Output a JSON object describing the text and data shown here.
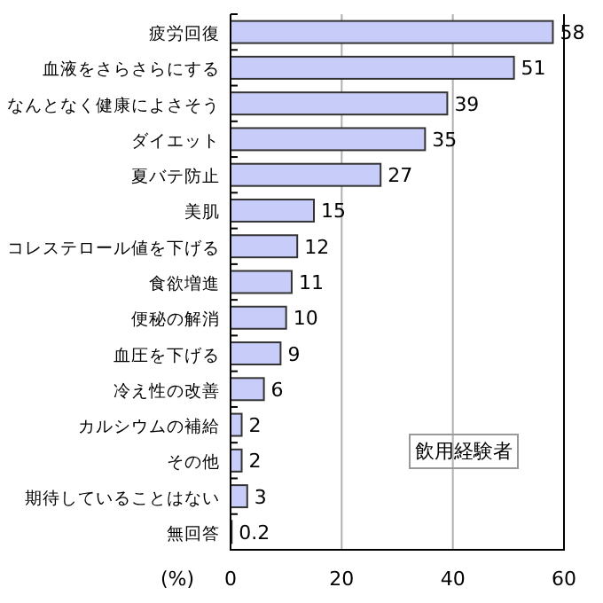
{
  "chart_data": {
    "type": "bar",
    "orientation": "horizontal",
    "xlabel": "(%)",
    "categories": [
      "疲労回復",
      "血液をさらさらにする",
      "なんとなく健康によさそう",
      "ダイエット",
      "夏バテ防止",
      "美肌",
      "コレステロール値を下げる",
      "食欲増進",
      "便秘の解消",
      "血圧を下げる",
      "冷え性の改善",
      "カルシウムの補給",
      "その他",
      "期待していることはない",
      "無回答"
    ],
    "values": [
      58,
      51,
      39,
      35,
      27,
      15,
      12,
      11,
      10,
      9,
      6,
      2,
      2,
      3,
      0.2
    ],
    "color": "#c8ccf8",
    "data_labels": true,
    "xlim": [
      0,
      60
    ],
    "xticks": [
      0,
      20,
      40,
      60
    ],
    "grid": "x",
    "annotations": [
      "飲用経験者"
    ]
  }
}
